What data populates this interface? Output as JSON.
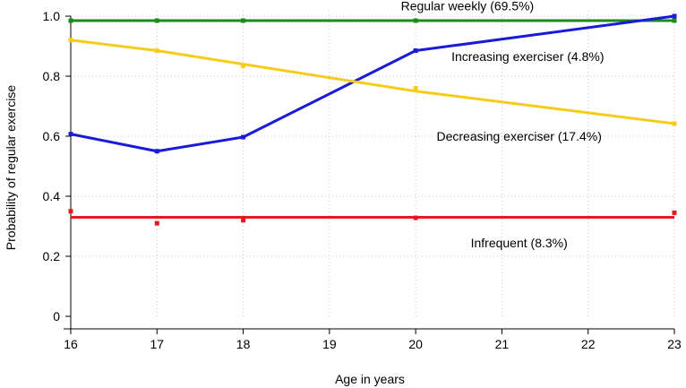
{
  "chart_data": {
    "type": "line",
    "title": "",
    "xlabel": "Age in years",
    "ylabel": "Probability of regular exercise",
    "xlim": [
      16,
      23
    ],
    "ylim": [
      0,
      1.0
    ],
    "x_ticks": [
      16,
      17,
      18,
      19,
      20,
      21,
      22,
      23
    ],
    "x_tick_labels": [
      "16",
      "17",
      "18",
      "19",
      "20",
      "21",
      "22",
      "23"
    ],
    "y_ticks": [
      0,
      0.2,
      0.4,
      0.6,
      0.8,
      1.0
    ],
    "y_tick_labels": [
      "0",
      "0.2",
      "0.4",
      "0.6",
      "0.8",
      "1.0"
    ],
    "grid": true,
    "series": [
      {
        "name": "Regular weekly (69.5%)",
        "color": "#1a8c1a",
        "line_x": [
          16,
          23
        ],
        "line_y": [
          0.985,
          0.985
        ],
        "points_x": [
          16,
          17,
          18,
          20,
          23
        ],
        "points_y": [
          0.985,
          0.985,
          0.985,
          0.985,
          0.985
        ]
      },
      {
        "name": "Increasing exerciser (4.8%)",
        "color": "#1a1ad9",
        "line_x": [
          16,
          17,
          18,
          20,
          23
        ],
        "line_y": [
          0.607,
          0.55,
          0.597,
          0.885,
          1.0
        ],
        "points_x": [
          16,
          17,
          18,
          20,
          23
        ],
        "points_y": [
          0.607,
          0.55,
          0.597,
          0.885,
          1.0
        ]
      },
      {
        "name": "Decreasing exerciser (17.4%)",
        "color": "#f5cc1a",
        "line_x": [
          16,
          17,
          18,
          20,
          23
        ],
        "line_y": [
          0.92,
          0.885,
          0.84,
          0.75,
          0.642
        ],
        "points_x": [
          16,
          17,
          18,
          20,
          23
        ],
        "points_y": [
          0.92,
          0.885,
          0.835,
          0.76,
          0.642
        ]
      },
      {
        "name": "Infrequent (8.3%)",
        "color": "#e61a1a",
        "line_x": [
          16,
          23
        ],
        "line_y": [
          0.33,
          0.33
        ],
        "points_x": [
          16,
          17,
          18,
          20,
          23
        ],
        "points_y": [
          0.35,
          0.31,
          0.32,
          0.328,
          0.345
        ]
      }
    ],
    "annotations": [
      {
        "text": "Regular weekly (69.5%)",
        "series": 0,
        "anchor_x": 20.6,
        "anchor_y": 1.035
      },
      {
        "text": "Increasing exerciser (4.8%)",
        "series": 1,
        "anchor_x": 21.3,
        "anchor_y": 0.865
      },
      {
        "text": "Decreasing exerciser (17.4%)",
        "series": 2,
        "anchor_x": 21.2,
        "anchor_y": 0.6
      },
      {
        "text": "Infrequent (8.3%)",
        "series": 3,
        "anchor_x": 21.2,
        "anchor_y": 0.245
      }
    ]
  }
}
